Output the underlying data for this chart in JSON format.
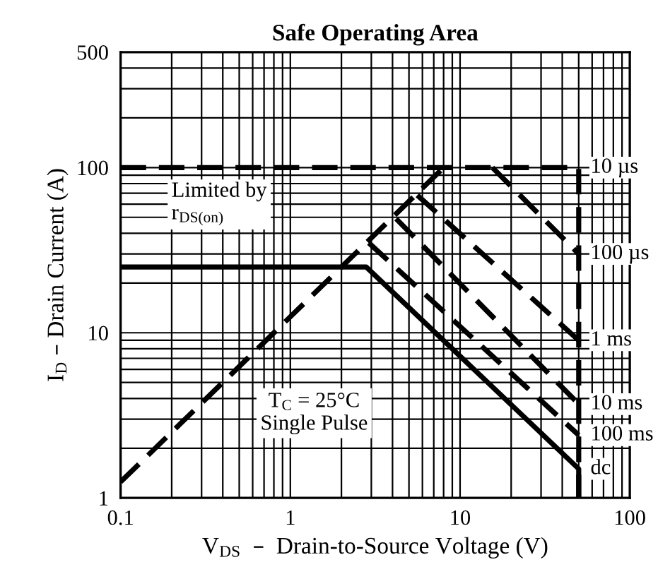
{
  "chart_data": {
    "type": "line",
    "title": "Safe Operating Area",
    "xlabel": "V$_{DS}$  –  Drain-to-Source Voltage (V)",
    "ylabel": "I$_{D}$ – Drain Current (A)",
    "log": "xy",
    "xlim": [
      0.1,
      100
    ],
    "ylim": [
      1,
      500
    ],
    "xticks": [
      0.1,
      1,
      10,
      100
    ],
    "yticks": [
      1,
      10,
      100,
      500
    ],
    "grid": true,
    "legend": false,
    "marker": "none",
    "series": [
      {
        "name": "10 µs",
        "color": "#000000",
        "line_style": "dashed",
        "x": [
          0.1,
          50,
          50
        ],
        "values": [
          100,
          100,
          1
        ]
      },
      {
        "name": "100 µs",
        "color": "#000000",
        "line_style": "dashed",
        "x": [
          15.5,
          50
        ],
        "values": [
          100,
          30
        ]
      },
      {
        "name": "1 ms",
        "color": "#000000",
        "line_style": "dashed",
        "x": [
          5.6,
          50
        ],
        "values": [
          68,
          9
        ]
      },
      {
        "name": "10 ms",
        "color": "#000000",
        "line_style": "dashed",
        "x": [
          4.2,
          50
        ],
        "values": [
          49,
          3.7
        ]
      },
      {
        "name": "100 ms",
        "color": "#000000",
        "line_style": "dashed",
        "x": [
          2.9,
          50
        ],
        "values": [
          35,
          2.4
        ]
      },
      {
        "name": "dc",
        "color": "#000000",
        "line_style": "solid",
        "x": [
          0.1,
          2.8,
          50,
          50
        ],
        "values": [
          25,
          25,
          1.5,
          1
        ]
      },
      {
        "color": "#000000",
        "line_style": "dashed",
        "x": [
          0.1,
          8
        ],
        "values": [
          1.25,
          100
        ]
      }
    ],
    "annotations": [
      "Limited by\nr$_{DS(on)}$",
      "T$_{C}$ = 25°C\nSingle Pulse"
    ]
  }
}
